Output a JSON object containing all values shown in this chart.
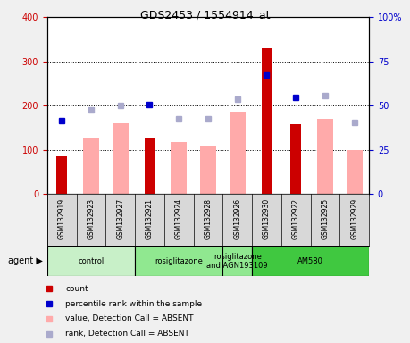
{
  "title": "GDS2453 / 1554914_at",
  "samples": [
    "GSM132919",
    "GSM132923",
    "GSM132927",
    "GSM132921",
    "GSM132924",
    "GSM132928",
    "GSM132926",
    "GSM132930",
    "GSM132922",
    "GSM132925",
    "GSM132929"
  ],
  "count_values": [
    85,
    null,
    null,
    128,
    null,
    null,
    null,
    330,
    157,
    null,
    null
  ],
  "pink_bar_values": [
    null,
    125,
    160,
    null,
    118,
    107,
    185,
    null,
    null,
    170,
    100
  ],
  "rank_absent_values": [
    null,
    190,
    200,
    null,
    170,
    170,
    215,
    null,
    null,
    223,
    162
  ],
  "percentile_present": [
    165,
    null,
    null,
    202,
    null,
    null,
    null,
    268,
    218,
    null,
    null
  ],
  "ylim_left": [
    0,
    400
  ],
  "ylim_right": [
    0,
    100
  ],
  "yticks_left": [
    0,
    100,
    200,
    300,
    400
  ],
  "yticks_right": [
    0,
    25,
    50,
    75,
    100
  ],
  "yticklabels_right": [
    "0",
    "25",
    "50",
    "75",
    "100%"
  ],
  "agent_groups": [
    {
      "label": "control",
      "start": 0,
      "end": 3,
      "color": "#c8f0c8"
    },
    {
      "label": "rosiglitazone",
      "start": 3,
      "end": 6,
      "color": "#90e890"
    },
    {
      "label": "rosiglitazone\nand AGN193109",
      "start": 6,
      "end": 7,
      "color": "#90e890"
    },
    {
      "label": "AM580",
      "start": 7,
      "end": 11,
      "color": "#40c840"
    }
  ],
  "legend_items": [
    {
      "label": "count",
      "color": "#cc0000"
    },
    {
      "label": "percentile rank within the sample",
      "color": "#0000cc"
    },
    {
      "label": "value, Detection Call = ABSENT",
      "color": "#ffaaaa"
    },
    {
      "label": "rank, Detection Call = ABSENT",
      "color": "#aaaacc"
    }
  ],
  "count_color": "#cc0000",
  "pink_bar_color": "#ffaaaa",
  "blue_dark_color": "#0000cc",
  "blue_light_color": "#aaaacc",
  "bg_color": "#f0f0f0",
  "plot_bg_color": "#ffffff",
  "cell_bg_color": "#d8d8d8"
}
